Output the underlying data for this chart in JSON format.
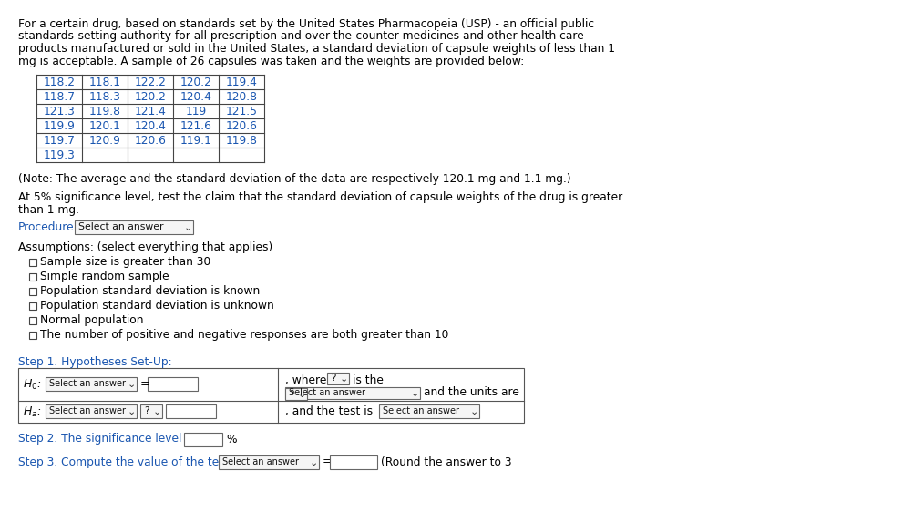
{
  "bg_color": "#ffffff",
  "text_color": "#000000",
  "blue_color": "#1a56b0",
  "black": "#000000",
  "intro_lines": [
    "For a certain drug, based on standards set by the United States Pharmacopeia (USP) - an official public",
    "standards-setting authority for all prescription and over-the-counter medicines and other health care",
    "products manufactured or sold in the United States, a standard deviation of capsule weights of less than 1",
    "mg is acceptable. A sample of 26 capsules was taken and the weights are provided below:"
  ],
  "table_data": [
    [
      "118.2",
      "118.1",
      "122.2",
      "120.2",
      "119.4"
    ],
    [
      "118.7",
      "118.3",
      "120.2",
      "120.4",
      "120.8"
    ],
    [
      "121.3",
      "119.8",
      "121.4",
      "119",
      "121.5"
    ],
    [
      "119.9",
      "120.1",
      "120.4",
      "121.6",
      "120.6"
    ],
    [
      "119.7",
      "120.9",
      "120.6",
      "119.1",
      "119.8"
    ],
    [
      "119.3",
      "",
      "",
      "",
      ""
    ]
  ],
  "note_text": "(Note: The average and the standard deviation of the data are respectively 120.1 mg and 1.1 mg.)",
  "claim_lines": [
    "At 5% significance level, test the claim that the standard deviation of capsule weights of the drug is greater",
    "than 1 mg."
  ],
  "procedure_label": "Procedure:",
  "procedure_dropdown": "Select an answer",
  "assumptions_label": "Assumptions: (select everything that applies)",
  "checkboxes": [
    "Sample size is greater than 30",
    "Simple random sample",
    "Population standard deviation is known",
    "Population standard deviation is unknown",
    "Normal population",
    "The number of positive and negative responses are both greater than 10"
  ],
  "step1_label": "Step 1. Hypotheses Set-Up:",
  "step2_label": "Step 2. The significance level α =",
  "step3_label": "Step 3. Compute the value of the test statistic:",
  "round_text": "(Round the answer to 3"
}
